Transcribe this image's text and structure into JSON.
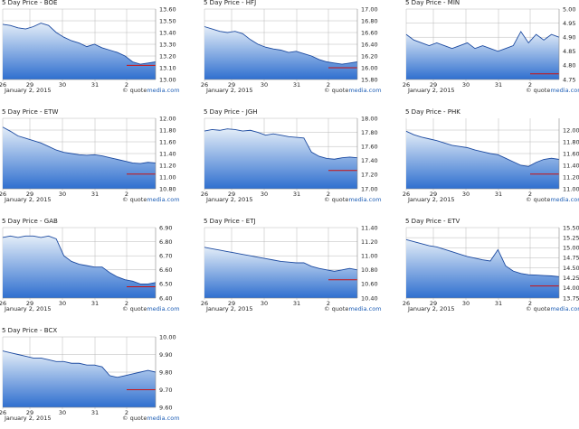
{
  "charts_common": {
    "date_label": "January 2, 2015",
    "brand_prefix": "© quote",
    "brand_suffix": "media.com",
    "x_tick_labels": [
      "26",
      "29",
      "30",
      "31",
      "2"
    ],
    "colors": {
      "fill_top": "#e3edf8",
      "fill_bottom": "#2f6fcf",
      "line": "#1c4aa0",
      "ref_line": "#cc1111",
      "grid": "#b8b8b8"
    }
  },
  "chart_data": [
    {
      "type": "area",
      "title": "5 Day Price - BOE",
      "ylim": [
        13.0,
        13.6
      ],
      "yticks": [
        "13.60",
        "13.50",
        "13.40",
        "13.30",
        "13.20",
        "13.10",
        "13.00"
      ],
      "ref_value": 13.12,
      "x": [
        0,
        1,
        2,
        3,
        4,
        5,
        6,
        7,
        8,
        9,
        10,
        11,
        12,
        13,
        14,
        15,
        16,
        17,
        18,
        19,
        20
      ],
      "values": [
        13.47,
        13.46,
        13.44,
        13.43,
        13.45,
        13.48,
        13.46,
        13.4,
        13.36,
        13.33,
        13.31,
        13.28,
        13.3,
        13.27,
        13.25,
        13.23,
        13.2,
        13.15,
        13.13,
        13.14,
        13.15
      ]
    },
    {
      "type": "area",
      "title": "5 Day Price - HFJ",
      "ylim": [
        15.8,
        17.0
      ],
      "yticks": [
        "17.00",
        "16.80",
        "16.60",
        "16.40",
        "16.20",
        "16.00",
        "15.80"
      ],
      "ref_value": 16.0,
      "x": [
        0,
        1,
        2,
        3,
        4,
        5,
        6,
        7,
        8,
        9,
        10,
        11,
        12,
        13,
        14,
        15,
        16,
        17,
        18,
        19,
        20
      ],
      "values": [
        16.7,
        16.66,
        16.62,
        16.6,
        16.62,
        16.58,
        16.48,
        16.4,
        16.35,
        16.32,
        16.3,
        16.26,
        16.28,
        16.24,
        16.2,
        16.14,
        16.1,
        16.08,
        16.06,
        16.08,
        16.1
      ]
    },
    {
      "type": "area",
      "title": "5 Day Price - MIN",
      "ylim": [
        4.75,
        5.0
      ],
      "yticks": [
        "5.00",
        "4.95",
        "4.90",
        "4.85",
        "4.80",
        "4.75"
      ],
      "ref_value": 4.77,
      "x": [
        0,
        1,
        2,
        3,
        4,
        5,
        6,
        7,
        8,
        9,
        10,
        11,
        12,
        13,
        14,
        15,
        16,
        17,
        18,
        19,
        20
      ],
      "values": [
        4.91,
        4.89,
        4.88,
        4.87,
        4.88,
        4.87,
        4.86,
        4.87,
        4.88,
        4.86,
        4.87,
        4.86,
        4.85,
        4.86,
        4.87,
        4.92,
        4.88,
        4.91,
        4.89,
        4.91,
        4.9
      ]
    },
    {
      "type": "area",
      "title": "5 Day Price - ETW",
      "ylim": [
        10.8,
        12.0
      ],
      "yticks": [
        "12.00",
        "11.80",
        "11.60",
        "11.40",
        "11.20",
        "11.00",
        "10.80"
      ],
      "ref_value": 11.05,
      "x": [
        0,
        1,
        2,
        3,
        4,
        5,
        6,
        7,
        8,
        9,
        10,
        11,
        12,
        13,
        14,
        15,
        16,
        17,
        18,
        19,
        20
      ],
      "values": [
        11.85,
        11.78,
        11.7,
        11.66,
        11.62,
        11.58,
        11.52,
        11.46,
        11.42,
        11.4,
        11.38,
        11.37,
        11.38,
        11.36,
        11.33,
        11.3,
        11.27,
        11.24,
        11.23,
        11.25,
        11.24
      ]
    },
    {
      "type": "area",
      "title": "5 Day Price - JGH",
      "ylim": [
        17.0,
        18.0
      ],
      "yticks": [
        "18.00",
        "17.80",
        "17.60",
        "17.40",
        "17.20",
        "17.00"
      ],
      "ref_value": 17.26,
      "x": [
        0,
        1,
        2,
        3,
        4,
        5,
        6,
        7,
        8,
        9,
        10,
        11,
        12,
        13,
        14,
        15,
        16,
        17,
        18,
        19,
        20
      ],
      "values": [
        17.82,
        17.84,
        17.83,
        17.85,
        17.84,
        17.82,
        17.83,
        17.8,
        17.76,
        17.78,
        17.76,
        17.74,
        17.73,
        17.72,
        17.52,
        17.46,
        17.43,
        17.42,
        17.44,
        17.45,
        17.44
      ]
    },
    {
      "type": "area",
      "title": "5 Day Price - PHK",
      "ylim": [
        11.0,
        12.2
      ],
      "yticks": [
        "12.00",
        "11.80",
        "11.60",
        "11.40",
        "11.20",
        "11.00"
      ],
      "ref_value": 11.25,
      "x": [
        0,
        1,
        2,
        3,
        4,
        5,
        6,
        7,
        8,
        9,
        10,
        11,
        12,
        13,
        14,
        15,
        16,
        17,
        18,
        19,
        20
      ],
      "values": [
        11.98,
        11.92,
        11.88,
        11.85,
        11.82,
        11.78,
        11.74,
        11.72,
        11.7,
        11.66,
        11.63,
        11.6,
        11.58,
        11.52,
        11.46,
        11.4,
        11.38,
        11.45,
        11.5,
        11.52,
        11.5
      ]
    },
    {
      "type": "area",
      "title": "5 Day Price - GAB",
      "ylim": [
        6.4,
        6.9
      ],
      "yticks": [
        "6.90",
        "6.80",
        "6.70",
        "6.60",
        "6.50",
        "6.40"
      ],
      "ref_value": 6.48,
      "x": [
        0,
        1,
        2,
        3,
        4,
        5,
        6,
        7,
        8,
        9,
        10,
        11,
        12,
        13,
        14,
        15,
        16,
        17,
        18,
        19,
        20
      ],
      "values": [
        6.83,
        6.84,
        6.83,
        6.84,
        6.84,
        6.83,
        6.84,
        6.82,
        6.7,
        6.66,
        6.64,
        6.63,
        6.62,
        6.62,
        6.58,
        6.55,
        6.53,
        6.52,
        6.5,
        6.5,
        6.51
      ]
    },
    {
      "type": "area",
      "title": "5 Day Price - ETJ",
      "ylim": [
        10.4,
        11.4
      ],
      "yticks": [
        "11.40",
        "11.20",
        "11.00",
        "10.80",
        "10.60",
        "10.40"
      ],
      "ref_value": 10.66,
      "x": [
        0,
        1,
        2,
        3,
        4,
        5,
        6,
        7,
        8,
        9,
        10,
        11,
        12,
        13,
        14,
        15,
        16,
        17,
        18,
        19,
        20
      ],
      "values": [
        11.12,
        11.1,
        11.08,
        11.06,
        11.04,
        11.02,
        11.0,
        10.98,
        10.96,
        10.94,
        10.92,
        10.91,
        10.9,
        10.9,
        10.85,
        10.82,
        10.8,
        10.78,
        10.8,
        10.82,
        10.8
      ]
    },
    {
      "type": "area",
      "title": "5 Day Price - ETV",
      "ylim": [
        13.75,
        15.5
      ],
      "yticks": [
        "15.50",
        "15.25",
        "15.00",
        "14.75",
        "14.50",
        "14.25",
        "14.00",
        "13.75"
      ],
      "ref_value": 14.05,
      "x": [
        0,
        1,
        2,
        3,
        4,
        5,
        6,
        7,
        8,
        9,
        10,
        11,
        12,
        13,
        14,
        15,
        16,
        17,
        18,
        19,
        20
      ],
      "values": [
        15.2,
        15.15,
        15.1,
        15.05,
        15.02,
        14.96,
        14.9,
        14.84,
        14.78,
        14.74,
        14.7,
        14.67,
        14.95,
        14.55,
        14.42,
        14.36,
        14.33,
        14.32,
        14.31,
        14.3,
        14.28
      ]
    },
    {
      "type": "area",
      "title": "5 Day Price - BCX",
      "ylim": [
        9.6,
        10.0
      ],
      "yticks": [
        "10.00",
        "9.90",
        "9.80",
        "9.70",
        "9.60"
      ],
      "ref_value": 9.7,
      "x": [
        0,
        1,
        2,
        3,
        4,
        5,
        6,
        7,
        8,
        9,
        10,
        11,
        12,
        13,
        14,
        15,
        16,
        17,
        18,
        19,
        20
      ],
      "values": [
        9.92,
        9.91,
        9.9,
        9.89,
        9.88,
        9.88,
        9.87,
        9.86,
        9.86,
        9.85,
        9.85,
        9.84,
        9.84,
        9.83,
        9.78,
        9.77,
        9.78,
        9.79,
        9.8,
        9.81,
        9.8
      ]
    }
  ]
}
